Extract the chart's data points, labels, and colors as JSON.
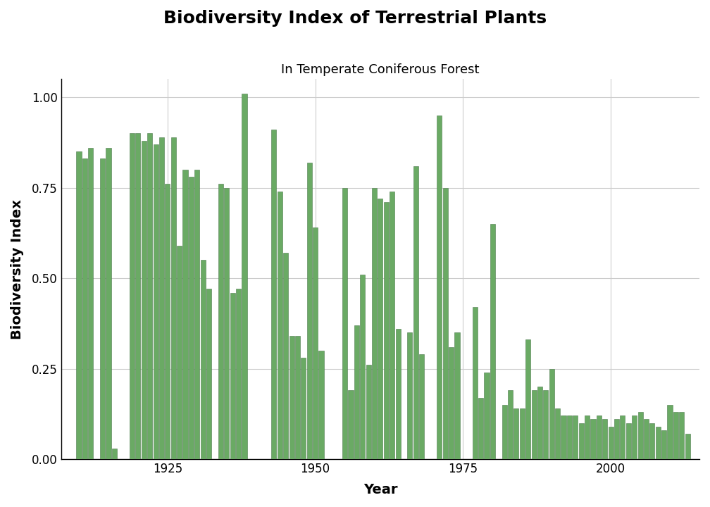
{
  "title": "Biodiversity Index of Terrestrial Plants",
  "subtitle": "In Temperate Coniferous Forest",
  "xlabel": "Year",
  "ylabel": "Biodiversity Index",
  "bar_color": "#6aaa64",
  "bar_edge_color": "#4d7a4d",
  "background_color": "#ffffff",
  "grid_color": "#cccccc",
  "ylim": [
    0,
    1.05
  ],
  "xlim": [
    1907,
    2015
  ],
  "years": [
    1910,
    1911,
    1912,
    1914,
    1915,
    1916,
    1919,
    1920,
    1921,
    1922,
    1923,
    1924,
    1925,
    1926,
    1927,
    1928,
    1929,
    1930,
    1931,
    1932,
    1934,
    1935,
    1936,
    1937,
    1938,
    1943,
    1944,
    1945,
    1946,
    1947,
    1948,
    1949,
    1950,
    1951,
    1955,
    1956,
    1957,
    1958,
    1959,
    1960,
    1961,
    1962,
    1963,
    1964,
    1966,
    1967,
    1968,
    1971,
    1972,
    1973,
    1974,
    1977,
    1978,
    1979,
    1980,
    1982,
    1983,
    1984,
    1985,
    1986,
    1987,
    1988,
    1989,
    1990,
    1991,
    1992,
    1993,
    1994,
    1995,
    1996,
    1997,
    1998,
    1999,
    2000,
    2001,
    2002,
    2003,
    2004,
    2005,
    2006,
    2007,
    2008,
    2009,
    2010,
    2011,
    2012,
    2013
  ],
  "values": [
    0.85,
    0.83,
    0.86,
    0.83,
    0.86,
    0.03,
    0.9,
    0.9,
    0.88,
    0.9,
    0.87,
    0.89,
    0.76,
    0.89,
    0.59,
    0.8,
    0.78,
    0.8,
    0.55,
    0.47,
    0.76,
    0.75,
    0.46,
    0.47,
    1.01,
    0.91,
    0.74,
    0.57,
    0.34,
    0.34,
    0.28,
    0.82,
    0.64,
    0.3,
    0.75,
    0.19,
    0.37,
    0.51,
    0.26,
    0.75,
    0.72,
    0.71,
    0.74,
    0.36,
    0.35,
    0.81,
    0.29,
    0.95,
    0.75,
    0.31,
    0.35,
    0.42,
    0.17,
    0.24,
    0.65,
    0.15,
    0.19,
    0.14,
    0.14,
    0.33,
    0.19,
    0.2,
    0.19,
    0.25,
    0.14,
    0.12,
    0.12,
    0.12,
    0.1,
    0.12,
    0.11,
    0.12,
    0.11,
    0.09,
    0.11,
    0.12,
    0.1,
    0.12,
    0.13,
    0.11,
    0.1,
    0.09,
    0.08,
    0.15,
    0.13,
    0.13,
    0.07
  ],
  "title_fontsize": 18,
  "subtitle_fontsize": 13,
  "axis_label_fontsize": 14,
  "tick_fontsize": 12
}
